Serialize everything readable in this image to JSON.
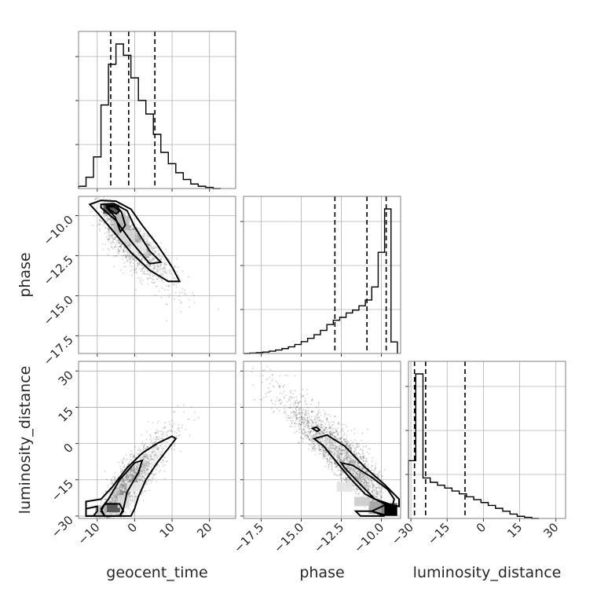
{
  "chart_data": {
    "type": "corner",
    "parameters": [
      "geocent_time",
      "phase",
      "luminosity_distance"
    ],
    "axes": {
      "geocent_time": {
        "range": [
          -15,
          27
        ],
        "ticks": [
          -10,
          0,
          10,
          20
        ],
        "tick_labels": [
          "−10",
          "0",
          "10",
          "20"
        ]
      },
      "phase": {
        "range": [
          -18.6,
          -8.8
        ],
        "ticks": [
          -17.5,
          -15,
          -12.5,
          -10
        ],
        "tick_labels": [
          "−17.5",
          "−15.0",
          "−12.5",
          "−10.0"
        ]
      },
      "luminosity_distance": {
        "range": [
          -31,
          34
        ],
        "ticks": [
          -30,
          -15,
          0,
          15,
          30
        ],
        "tick_labels": [
          "−30",
          "−15",
          "0",
          "15",
          "30"
        ]
      }
    },
    "histograms": [
      {
        "parameter": "geocent_time",
        "bin_edges": [
          -15,
          -13,
          -11,
          -9,
          -7,
          -5,
          -3,
          -1,
          1,
          3,
          5,
          7,
          9,
          11,
          13,
          15,
          17,
          19,
          21,
          23
        ],
        "counts": [
          1,
          5,
          14,
          37,
          55,
          64,
          59,
          49,
          39,
          33,
          24,
          16,
          11,
          7,
          4,
          2,
          1,
          0.5,
          0
        ],
        "quantile_lines": [
          -6.4,
          -1.6,
          5.4
        ]
      },
      {
        "parameter": "phase",
        "bin_edges": [
          -18.2,
          -17.8,
          -17.4,
          -17.0,
          -16.6,
          -16.2,
          -15.8,
          -15.4,
          -15.0,
          -14.6,
          -14.2,
          -13.8,
          -13.4,
          -13.0,
          -12.6,
          -12.2,
          -11.8,
          -11.4,
          -11.0,
          -10.6,
          -10.2,
          -9.8,
          -9.4,
          -9.0
        ],
        "counts": [
          0.3,
          0.6,
          1,
          1.6,
          2.4,
          3.4,
          4.6,
          6.2,
          8.2,
          10.5,
          13,
          16,
          20,
          23,
          25,
          28,
          30,
          33,
          37,
          46,
          70,
          100,
          8
        ],
        "quantile_lines": [
          -12.9,
          -10.9,
          -9.7
        ]
      },
      {
        "parameter": "luminosity_distance",
        "bin_edges": [
          -31,
          -28,
          -25,
          -22,
          -19,
          -16,
          -13,
          -10,
          -7,
          -4,
          -1,
          2,
          5,
          8,
          11,
          14,
          17,
          20,
          23
        ],
        "counts": [
          40,
          100,
          28,
          25,
          23,
          21,
          19,
          17,
          15,
          13,
          11,
          9,
          7,
          5,
          3,
          1.5,
          0.8,
          0
        ],
        "quantile_lines": [
          -28.5,
          -23.9,
          -7.6
        ]
      }
    ],
    "scatter_panels": [
      {
        "x": "geocent_time",
        "y": "phase",
        "correlation": "negative"
      },
      {
        "x": "geocent_time",
        "y": "luminosity_distance",
        "correlation": "positive"
      },
      {
        "x": "phase",
        "y": "luminosity_distance",
        "correlation": "negative"
      }
    ],
    "xlabels": [
      "geocent_time",
      "phase",
      "luminosity_distance"
    ],
    "ylabels": [
      "phase",
      "luminosity_distance"
    ],
    "grid": true
  }
}
